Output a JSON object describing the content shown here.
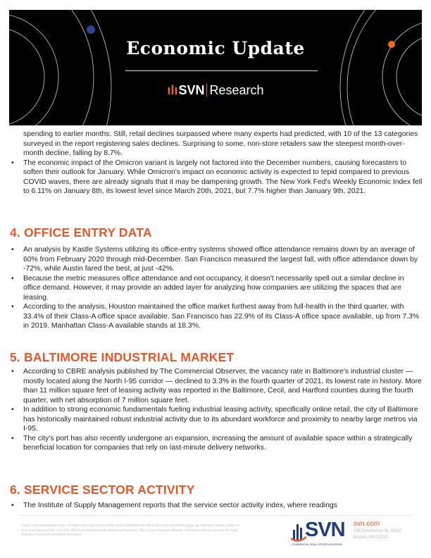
{
  "header": {
    "title": "Economic Update",
    "brand_svn": "SVN",
    "brand_research": "Research"
  },
  "section3_cont": {
    "text": "spending to earlier months. Still, retail declines surpassed where many experts had predicted, with 10 of the 13 categories surveyed in the report registering sales declines. Surprising to some, non-store retailers saw the steepest month-over-month decline, falling by 8.7%.",
    "bullets": [
      "The economic impact of the Omicron variant is largely not factored into the December numbers, causing forecasters to soften their outlook for January. While Omicron's impact on economic activity is expected to tepid compared to previous COVID waves, there are already signals that it may be dampening growth. The New York Fed's Weekly Economic Index fell to 6.11% on January 8th, its lowest level since March 20th, 2021, but 7.7% higher than January 9th, 2021."
    ]
  },
  "section4": {
    "heading": "4. OFFICE ENTRY DATA",
    "bullets": [
      "An analysis by Kastle Systems utilizing its office-entry systems showed office attendance remains down by an average of 60% from February 2020 through mid-December. San Francisco measured the largest fall, with office attendance down by -72%, while Austin fared the best, at just -42%.",
      "Because the metric measures office attendance and not occupancy, it doesn't necessarily spell out a similar decline in office demand. However, it may provide an added layer for analyzing how companies are utilizing the spaces that are leasing.",
      "According to the analysis, Houston maintained the office market furthest away from full-health in the third quarter, with 33.4% of their Class-A office space available. San Francisco has 22.9% of its Class-A office space available, up from 7.3% in 2019. Manhattan Class-A available stands at 18.3%."
    ]
  },
  "section5": {
    "heading": "5. BALTIMORE INDUSTRIAL MARKET",
    "bullets": [
      "According to CBRE analysis published by The Commercial Observer, the vacancy rate in Baltimore's industrial cluster — mostly located along the North I-95 corridor — declined to 3.3% in the fourth quarter of 2021, its lowest rate in history. More than 11 million square feet of leasing activity was reported in the Baltimore, Cecil, and Hartford counties during the fourth quarter, with net absorption of 7 million square feet.",
      "In addition to strong economic fundamentals fueling industrial leasing activity, specifically online retail, the city of Baltimore has historically maintained robust industrial activity due to its abundant workforce and proximity to nearby large metros via I-95.",
      "The city's port has also recently undergone an expansion, increasing the amount of available space within a strategically beneficial location for companies that rely on last-minute delivery networks."
    ]
  },
  "section6": {
    "heading": "6. SERVICE SECTOR ACTIVITY",
    "bullets": [
      "The Institute of Supply Management reports that the service sector activity index, where readings"
    ]
  },
  "footer": {
    "legal": "©2021 SVN International Corp. All Rights Reserved. SVN and the SVN COMMERCIAL REAL ESTATE ADVISORS logos are registered service marks of SVN International Corp. All SVN® offices are independently owned and operated. This is not a franchise offering. A franchise offering can only be made through a Franchise Disclosure Document.",
    "logo_word": "SVN",
    "logo_tag": "COMMERCIAL REAL ESTATE ADVISORS",
    "website": "svn.com",
    "address1": "185 Devonshire St, M102",
    "address2": "Boston, MA 02110"
  },
  "colors": {
    "accent": "#e8572a",
    "brand_blue": "#1f3e7a",
    "banner": "#000000"
  }
}
